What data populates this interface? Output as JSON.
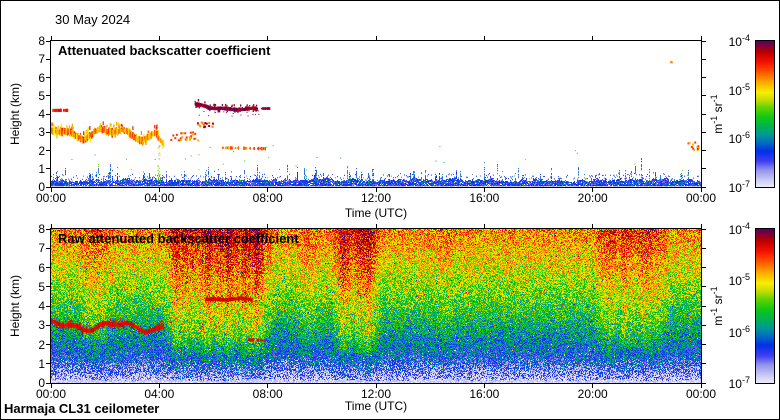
{
  "header": {
    "date_label": "30 May 2024"
  },
  "footer": {
    "instrument_label": "Harmaja CL31 ceilometer"
  },
  "axes": {
    "x": {
      "label": "Time (UTC)",
      "ticks": [
        "00:00",
        "04:00",
        "08:00",
        "12:00",
        "16:00",
        "20:00",
        "00:00"
      ]
    },
    "y": {
      "label": "Height (km)",
      "ticks": [
        "0",
        "1",
        "2",
        "3",
        "4",
        "5",
        "6",
        "7",
        "8"
      ],
      "range_km": [
        0,
        8
      ]
    }
  },
  "colorbar": {
    "ticks": [
      {
        "base": "10",
        "exp": "-4"
      },
      {
        "base": "10",
        "exp": "-5"
      },
      {
        "base": "10",
        "exp": "-6"
      },
      {
        "base": "10",
        "exp": "-7"
      }
    ],
    "unit": {
      "m": "m",
      "mexp": "-1",
      "sr": " sr",
      "srexp": "-1"
    },
    "range_log10": [
      -7,
      -4
    ],
    "stops": [
      [
        0.0,
        "#eeeefc"
      ],
      [
        0.05,
        "#ccccf4"
      ],
      [
        0.12,
        "#9494ee"
      ],
      [
        0.18,
        "#4040f2"
      ],
      [
        0.25,
        "#0030e8"
      ],
      [
        0.31,
        "#0070c0"
      ],
      [
        0.36,
        "#009898"
      ],
      [
        0.42,
        "#00b450"
      ],
      [
        0.48,
        "#10c818"
      ],
      [
        0.55,
        "#66d400"
      ],
      [
        0.6,
        "#c8dc00"
      ],
      [
        0.65,
        "#f8f000"
      ],
      [
        0.72,
        "#ffaa00"
      ],
      [
        0.79,
        "#ff5500"
      ],
      [
        0.86,
        "#f51000"
      ],
      [
        0.93,
        "#b80000"
      ],
      [
        1.0,
        "#5a0060"
      ]
    ]
  },
  "chart_data": [
    {
      "type": "heatmap",
      "title": "Attenuated backscatter coefficient",
      "x_range_hours": [
        0,
        24
      ],
      "y_range_km": [
        0,
        8
      ],
      "value_scale_log10": [
        -7,
        -4
      ],
      "background": "#ffffff",
      "surface_layer": {
        "typical_top_km": 0.45,
        "spike_max_km": 1.7,
        "spike_count": 175
      },
      "features": [
        {
          "kind": "layer",
          "t": [
            0.0,
            3.95
          ],
          "h": [
            3.0,
            2.9
          ],
          "wobble": 0.22,
          "thick": 0.24,
          "colors": [
            0.84,
            0.72,
            0.65
          ],
          "label": "aerosol-layer"
        },
        {
          "kind": "layer",
          "t": [
            3.9,
            4.15
          ],
          "h": [
            2.8,
            2.35
          ],
          "wobble": 0.05,
          "thick": 0.2,
          "colors": [
            0.76,
            0.68
          ]
        },
        {
          "kind": "dashes",
          "t": [
            0.05,
            0.6
          ],
          "h": [
            4.2,
            4.2
          ],
          "thick": 0.12,
          "colors": [
            0.86
          ]
        },
        {
          "kind": "scatter",
          "t": [
            3.93,
            4.02
          ],
          "h": [
            0.3,
            2.3
          ],
          "count": 30,
          "size": 1,
          "colors": [
            0.5,
            0.58,
            0.64
          ]
        },
        {
          "kind": "blobs",
          "t": [
            4.3,
            5.5
          ],
          "h": [
            2.6,
            3.05
          ],
          "count": 26,
          "size": 2,
          "colors": [
            0.82,
            0.72
          ]
        },
        {
          "kind": "blobs",
          "t": [
            5.35,
            6.0
          ],
          "h": [
            3.3,
            3.6
          ],
          "count": 14,
          "size": 2,
          "colors": [
            0.76,
            0.95
          ]
        },
        {
          "kind": "layer",
          "t": [
            5.3,
            7.6
          ],
          "h": [
            4.45,
            4.2
          ],
          "wobble": 0.06,
          "thick": 0.14,
          "colors": [
            0.97,
            0.99,
            0.93
          ],
          "label": "cloud-layer"
        },
        {
          "kind": "blobs",
          "t": [
            5.4,
            7.7
          ],
          "h": [
            3.9,
            4.2
          ],
          "count": 18,
          "size": 1,
          "colors": [
            0.96
          ]
        },
        {
          "kind": "dashes",
          "t": [
            7.75,
            8.05
          ],
          "h": [
            4.3,
            4.3
          ],
          "thick": 0.1,
          "colors": [
            0.96
          ]
        },
        {
          "kind": "dashes",
          "t": [
            6.3,
            7.9
          ],
          "h": [
            2.15,
            2.1
          ],
          "thick": 0.13,
          "colors": [
            0.75,
            0.82
          ],
          "gap": 0.55
        },
        {
          "kind": "blobs",
          "t": [
            22.75,
            22.9
          ],
          "h": [
            6.8,
            6.95
          ],
          "count": 2,
          "size": 2,
          "colors": [
            0.74
          ]
        },
        {
          "kind": "blobs",
          "t": [
            23.5,
            23.9
          ],
          "h": [
            2.05,
            2.5
          ],
          "count": 12,
          "size": 2,
          "colors": [
            0.82,
            0.7,
            0.6
          ]
        },
        {
          "kind": "scatter",
          "t": [
            0.3,
            23.8
          ],
          "h": [
            0.9,
            2.3
          ],
          "count": 28,
          "size": 1,
          "colors": [
            0.5,
            0.55,
            0.42
          ]
        }
      ]
    },
    {
      "type": "heatmap",
      "title": "Raw attenuated backscatter coefficient",
      "x_range_hours": [
        0,
        24
      ],
      "y_range_km": [
        0,
        8
      ],
      "value_scale_log10": [
        -7,
        -4
      ],
      "base_log10": {
        "surface": -7.0,
        "span": 2.25,
        "exponent": 0.62
      },
      "noise_sigma": 0.45,
      "precip_bands": [
        {
          "t": [
            4.4,
            8.0
          ],
          "strength": 0.55
        },
        {
          "t": [
            10.5,
            12.0
          ],
          "strength": 0.5
        },
        {
          "t": [
            1.1,
            2.1
          ],
          "strength": 0.22
        },
        {
          "t": [
            9.2,
            9.8
          ],
          "strength": 0.2
        },
        {
          "t": [
            20.2,
            22.6
          ],
          "strength": 0.28
        },
        {
          "t": [
            14.3,
            14.7
          ],
          "strength": 0.15
        }
      ],
      "white_speckle": {
        "below_km": 1.35,
        "max_prob": 0.32
      },
      "features": [
        {
          "kind": "layer",
          "t": [
            0.0,
            4.1
          ],
          "h": [
            3.0,
            2.9
          ],
          "wobble": 0.18,
          "thick": 0.14,
          "colors": [
            0.9,
            0.87
          ],
          "label": "aerosol-layer"
        },
        {
          "kind": "layer",
          "t": [
            5.7,
            7.4
          ],
          "h": [
            4.4,
            4.3
          ],
          "wobble": 0.05,
          "thick": 0.13,
          "colors": [
            0.9
          ]
        },
        {
          "kind": "dashes",
          "t": [
            7.25,
            7.9
          ],
          "h": [
            2.25,
            2.2
          ],
          "thick": 0.12,
          "colors": [
            0.88
          ],
          "gap": 0.5
        }
      ]
    }
  ]
}
